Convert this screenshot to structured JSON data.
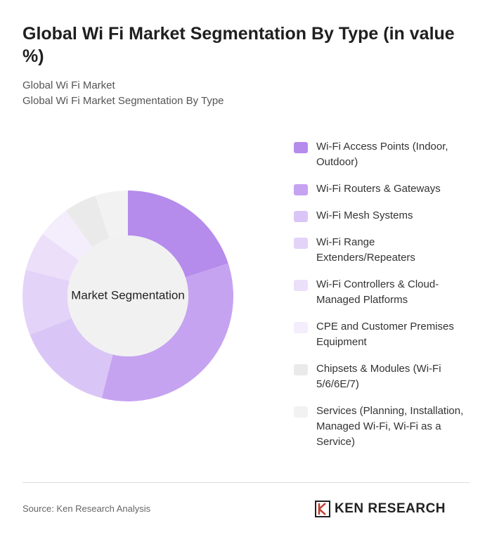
{
  "chart_data": {
    "type": "donut",
    "title": "Global Wi Fi Market Segmentation By Type (in value %)",
    "subtitle": "Global Wi Fi Market",
    "subtitle_2": "Global Wi Fi Market Segmentation By Type",
    "center_label": "Market Segmentation",
    "categories": [
      "Wi-Fi Access Points (Indoor, Outdoor)",
      "Wi-Fi Routers & Gateways",
      "Wi-Fi Mesh Systems",
      "Wi-Fi Range Extenders/Repeaters",
      "Wi-Fi Controllers & Cloud-Managed Platforms",
      "CPE and Customer Premises Equipment",
      "Chipsets & Modules (Wi-Fi 5/6/6E/7)",
      "Services (Planning, Installation, Managed Wi-Fi, Wi-Fi as a Service)"
    ],
    "values": [
      20,
      34,
      15,
      10,
      6,
      5,
      5,
      5
    ],
    "colors": [
      "#b58bec",
      "#c6a3f1",
      "#dac6f6",
      "#e3d3f8",
      "#ecdffa",
      "#f3edfc",
      "#eaeaea",
      "#f2f2f2"
    ]
  },
  "source": "Source: Ken Research Analysis",
  "logo": "KEN RESEARCH"
}
